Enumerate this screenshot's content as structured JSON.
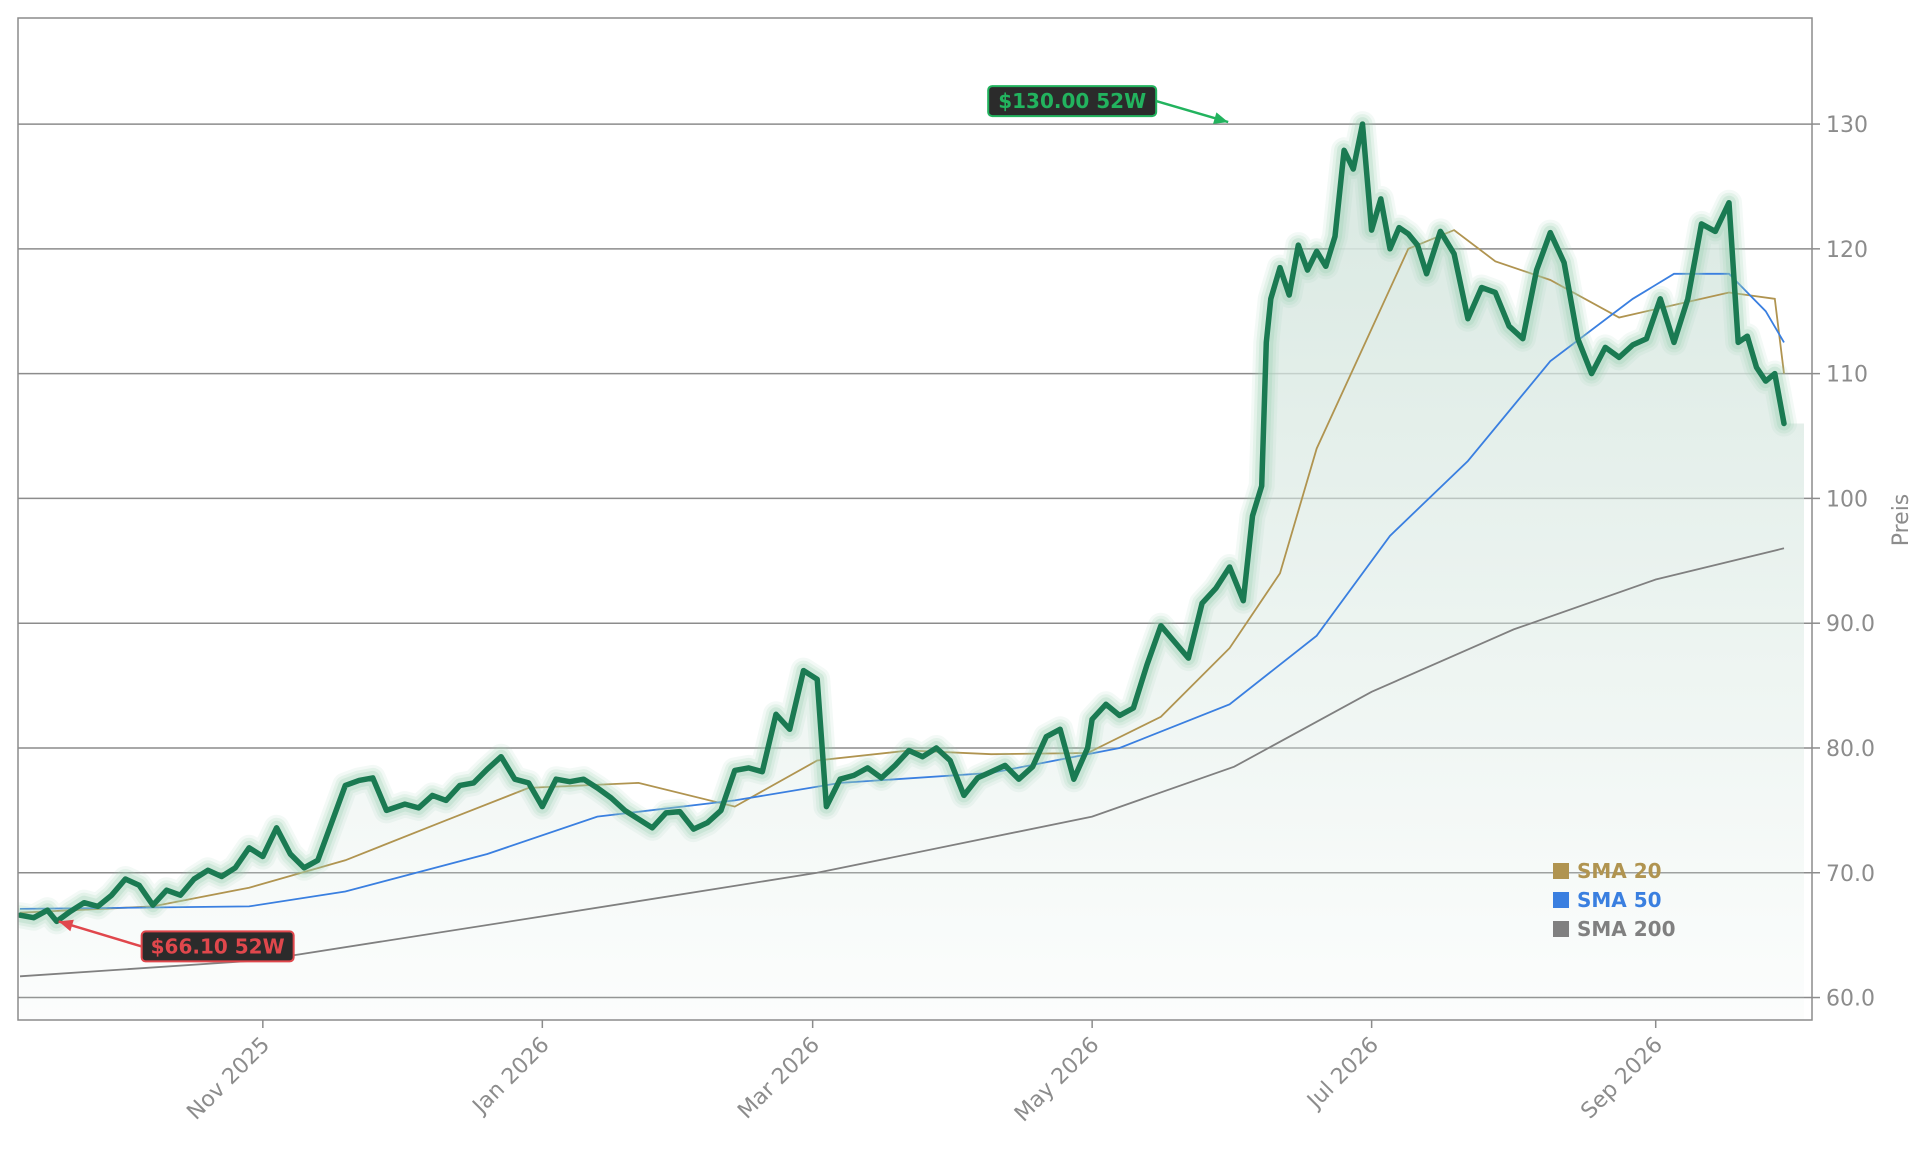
{
  "chart_data": {
    "type": "line",
    "title": "",
    "xlabel": "",
    "ylabel": "Preis",
    "ylim": [
      58.2,
      138.5
    ],
    "xlim": [
      "2025-09-09",
      "2026-09-29"
    ],
    "yticks": [
      60,
      70,
      80,
      90,
      100,
      110,
      120,
      130
    ],
    "ytick_labels": [
      "60.0",
      "70.0",
      "80.0",
      "90.0",
      "100",
      "110",
      "120",
      "130"
    ],
    "xticks": [
      "2025-11-01",
      "2026-01-01",
      "2026-03-01",
      "2026-05-01",
      "2026-07-01",
      "2026-09-01"
    ],
    "xtick_labels": [
      "Nov 2025",
      "Jan 2026",
      "Mar 2026",
      "May 2026",
      "Jul 2026",
      "Sep 2026"
    ],
    "grid": "horizontal",
    "legend": {
      "placement": "lower-right",
      "entries": [
        "SMA 20",
        "SMA 50",
        "SMA 200"
      ]
    },
    "annotations": [
      {
        "label": "$130.00 52W",
        "date": "2026-06-01",
        "value": 130.0,
        "color": "#22b35e"
      },
      {
        "label": "$66.10 52W",
        "date": "2025-09-17",
        "value": 66.1,
        "color": "#e0474c"
      }
    ],
    "colors": {
      "price": "#1a7a52",
      "price_glow": "#9cd0b4",
      "area": "#dbe9e3",
      "sma20": "#b09450",
      "sma50": "#3a7fe0",
      "sma200": "#808080",
      "grid": "#8c8c8c",
      "tick_text": "#8c8c8c"
    },
    "series": [
      {
        "name": "Price",
        "points": [
          [
            "2025-09-09",
            66.6
          ],
          [
            "2025-09-12",
            66.4
          ],
          [
            "2025-09-15",
            67.0
          ],
          [
            "2025-09-17",
            66.1
          ],
          [
            "2025-09-20",
            66.9
          ],
          [
            "2025-09-23",
            67.6
          ],
          [
            "2025-09-26",
            67.3
          ],
          [
            "2025-09-29",
            68.2
          ],
          [
            "2025-10-02",
            69.5
          ],
          [
            "2025-10-05",
            69.0
          ],
          [
            "2025-10-08",
            67.4
          ],
          [
            "2025-10-11",
            68.6
          ],
          [
            "2025-10-14",
            68.2
          ],
          [
            "2025-10-17",
            69.5
          ],
          [
            "2025-10-20",
            70.2
          ],
          [
            "2025-10-23",
            69.7
          ],
          [
            "2025-10-26",
            70.4
          ],
          [
            "2025-10-29",
            72.0
          ],
          [
            "2025-11-01",
            71.3
          ],
          [
            "2025-11-04",
            73.6
          ],
          [
            "2025-11-07",
            71.5
          ],
          [
            "2025-11-10",
            70.4
          ],
          [
            "2025-11-13",
            71.0
          ],
          [
            "2025-11-16",
            74.0
          ],
          [
            "2025-11-19",
            77.0
          ],
          [
            "2025-11-22",
            77.4
          ],
          [
            "2025-11-25",
            77.6
          ],
          [
            "2025-11-28",
            75.0
          ],
          [
            "2025-12-02",
            75.5
          ],
          [
            "2025-12-05",
            75.2
          ],
          [
            "2025-12-08",
            76.2
          ],
          [
            "2025-12-11",
            75.8
          ],
          [
            "2025-12-14",
            77.0
          ],
          [
            "2025-12-17",
            77.2
          ],
          [
            "2025-12-20",
            78.3
          ],
          [
            "2025-12-23",
            79.3
          ],
          [
            "2025-12-26",
            77.5
          ],
          [
            "2025-12-29",
            77.2
          ],
          [
            "2026-01-01",
            75.3
          ],
          [
            "2026-01-04",
            77.5
          ],
          [
            "2026-01-07",
            77.3
          ],
          [
            "2026-01-10",
            77.5
          ],
          [
            "2026-01-13",
            76.8
          ],
          [
            "2026-01-16",
            76.0
          ],
          [
            "2026-01-19",
            75.0
          ],
          [
            "2026-01-22",
            74.3
          ],
          [
            "2026-01-25",
            73.6
          ],
          [
            "2026-01-28",
            74.8
          ],
          [
            "2026-01-31",
            74.9
          ],
          [
            "2026-02-03",
            73.5
          ],
          [
            "2026-02-06",
            74.0
          ],
          [
            "2026-02-09",
            75.0
          ],
          [
            "2026-02-12",
            78.2
          ],
          [
            "2026-02-15",
            78.4
          ],
          [
            "2026-02-18",
            78.1
          ],
          [
            "2026-02-21",
            82.7
          ],
          [
            "2026-02-24",
            81.5
          ],
          [
            "2026-02-27",
            86.2
          ],
          [
            "2026-03-02",
            85.5
          ],
          [
            "2026-03-04",
            75.3
          ],
          [
            "2026-03-07",
            77.5
          ],
          [
            "2026-03-10",
            77.8
          ],
          [
            "2026-03-13",
            78.4
          ],
          [
            "2026-03-16",
            77.6
          ],
          [
            "2026-03-19",
            78.6
          ],
          [
            "2026-03-22",
            79.8
          ],
          [
            "2026-03-25",
            79.3
          ],
          [
            "2026-03-28",
            80.0
          ],
          [
            "2026-03-31",
            79.0
          ],
          [
            "2026-04-03",
            76.2
          ],
          [
            "2026-04-06",
            77.6
          ],
          [
            "2026-04-09",
            78.1
          ],
          [
            "2026-04-12",
            78.6
          ],
          [
            "2026-04-15",
            77.5
          ],
          [
            "2026-04-18",
            78.5
          ],
          [
            "2026-04-21",
            80.9
          ],
          [
            "2026-04-24",
            81.5
          ],
          [
            "2026-04-27",
            77.5
          ],
          [
            "2026-04-30",
            80.0
          ],
          [
            "2026-05-01",
            82.3
          ],
          [
            "2026-05-04",
            83.5
          ],
          [
            "2026-05-07",
            82.6
          ],
          [
            "2026-05-10",
            83.2
          ],
          [
            "2026-05-13",
            86.7
          ],
          [
            "2026-05-16",
            89.8
          ],
          [
            "2026-05-19",
            88.5
          ],
          [
            "2026-05-22",
            87.2
          ],
          [
            "2026-05-25",
            91.6
          ],
          [
            "2026-05-28",
            92.8
          ],
          [
            "2026-05-31",
            94.5
          ],
          [
            "2026-06-03",
            91.8
          ],
          [
            "2026-06-05",
            98.6
          ],
          [
            "2026-06-07",
            101.0
          ],
          [
            "2026-06-08",
            112.5
          ],
          [
            "2026-06-09",
            116.0
          ],
          [
            "2026-06-11",
            118.5
          ],
          [
            "2026-06-13",
            116.3
          ],
          [
            "2026-06-15",
            120.3
          ],
          [
            "2026-06-17",
            118.3
          ],
          [
            "2026-06-19",
            119.8
          ],
          [
            "2026-06-21",
            118.6
          ],
          [
            "2026-06-23",
            121.0
          ],
          [
            "2026-06-25",
            127.9
          ],
          [
            "2026-06-27",
            126.4
          ],
          [
            "2026-06-29",
            130.0
          ],
          [
            "2026-07-01",
            121.5
          ],
          [
            "2026-07-03",
            124.0
          ],
          [
            "2026-07-05",
            120.0
          ],
          [
            "2026-07-07",
            121.7
          ],
          [
            "2026-07-09",
            121.2
          ],
          [
            "2026-07-11",
            120.3
          ],
          [
            "2026-07-13",
            118.0
          ],
          [
            "2026-07-16",
            121.4
          ],
          [
            "2026-07-19",
            119.6
          ],
          [
            "2026-07-22",
            114.4
          ],
          [
            "2026-07-25",
            116.9
          ],
          [
            "2026-07-28",
            116.5
          ],
          [
            "2026-07-31",
            113.8
          ],
          [
            "2026-08-03",
            112.8
          ],
          [
            "2026-08-06",
            118.3
          ],
          [
            "2026-08-09",
            121.3
          ],
          [
            "2026-08-12",
            118.9
          ],
          [
            "2026-08-15",
            112.8
          ],
          [
            "2026-08-18",
            110.0
          ],
          [
            "2026-08-21",
            112.1
          ],
          [
            "2026-08-24",
            111.3
          ],
          [
            "2026-08-27",
            112.3
          ],
          [
            "2026-08-30",
            112.8
          ],
          [
            "2026-09-02",
            116.0
          ],
          [
            "2026-09-05",
            112.5
          ],
          [
            "2026-09-08",
            116.0
          ],
          [
            "2026-09-11",
            122.0
          ],
          [
            "2026-09-14",
            121.4
          ],
          [
            "2026-09-17",
            123.7
          ],
          [
            "2026-09-19",
            112.5
          ],
          [
            "2026-09-21",
            113.0
          ],
          [
            "2026-09-23",
            110.5
          ],
          [
            "2026-09-25",
            109.4
          ],
          [
            "2026-09-27",
            110.0
          ],
          [
            "2026-09-29",
            106.0
          ]
        ]
      },
      {
        "name": "SMA 20",
        "points": [
          [
            "2025-09-09",
            66.8
          ],
          [
            "2025-10-08",
            67.3
          ],
          [
            "2025-10-29",
            68.8
          ],
          [
            "2025-11-19",
            71.0
          ],
          [
            "2025-12-11",
            74.2
          ],
          [
            "2025-12-29",
            76.8
          ],
          [
            "2026-01-22",
            77.2
          ],
          [
            "2026-02-12",
            75.3
          ],
          [
            "2026-03-02",
            79.0
          ],
          [
            "2026-03-22",
            79.8
          ],
          [
            "2026-04-09",
            79.5
          ],
          [
            "2026-04-30",
            79.6
          ],
          [
            "2026-05-16",
            82.5
          ],
          [
            "2026-05-31",
            88.0
          ],
          [
            "2026-06-11",
            94.0
          ],
          [
            "2026-06-19",
            104.0
          ],
          [
            "2026-06-29",
            112.0
          ],
          [
            "2026-07-09",
            120.0
          ],
          [
            "2026-07-19",
            121.5
          ],
          [
            "2026-07-28",
            119.0
          ],
          [
            "2026-08-09",
            117.5
          ],
          [
            "2026-08-24",
            114.5
          ],
          [
            "2026-09-05",
            115.5
          ],
          [
            "2026-09-17",
            116.5
          ],
          [
            "2026-09-27",
            116.0
          ],
          [
            "2026-09-29",
            110.0
          ]
        ]
      },
      {
        "name": "SMA 50",
        "points": [
          [
            "2025-09-09",
            67.1
          ],
          [
            "2025-10-29",
            67.3
          ],
          [
            "2025-11-19",
            68.5
          ],
          [
            "2025-12-20",
            71.5
          ],
          [
            "2026-01-13",
            74.5
          ],
          [
            "2026-02-12",
            75.8
          ],
          [
            "2026-03-07",
            77.2
          ],
          [
            "2026-04-09",
            78.0
          ],
          [
            "2026-05-07",
            80.0
          ],
          [
            "2026-05-31",
            83.5
          ],
          [
            "2026-06-19",
            89.0
          ],
          [
            "2026-07-05",
            97.0
          ],
          [
            "2026-07-22",
            103.0
          ],
          [
            "2026-08-09",
            111.0
          ],
          [
            "2026-08-27",
            116.0
          ],
          [
            "2026-09-05",
            118.0
          ],
          [
            "2026-09-17",
            118.0
          ],
          [
            "2026-09-21",
            116.5
          ],
          [
            "2026-09-25",
            115.0
          ],
          [
            "2026-09-29",
            112.5
          ]
        ]
      },
      {
        "name": "SMA 200",
        "points": [
          [
            "2025-09-09",
            61.7
          ],
          [
            "2025-11-01",
            63.0
          ],
          [
            "2026-01-01",
            66.5
          ],
          [
            "2026-03-02",
            70.0
          ],
          [
            "2026-05-01",
            74.5
          ],
          [
            "2026-06-01",
            78.5
          ],
          [
            "2026-07-01",
            84.5
          ],
          [
            "2026-08-01",
            89.5
          ],
          [
            "2026-09-01",
            93.5
          ],
          [
            "2026-09-29",
            96.0
          ]
        ]
      }
    ]
  }
}
